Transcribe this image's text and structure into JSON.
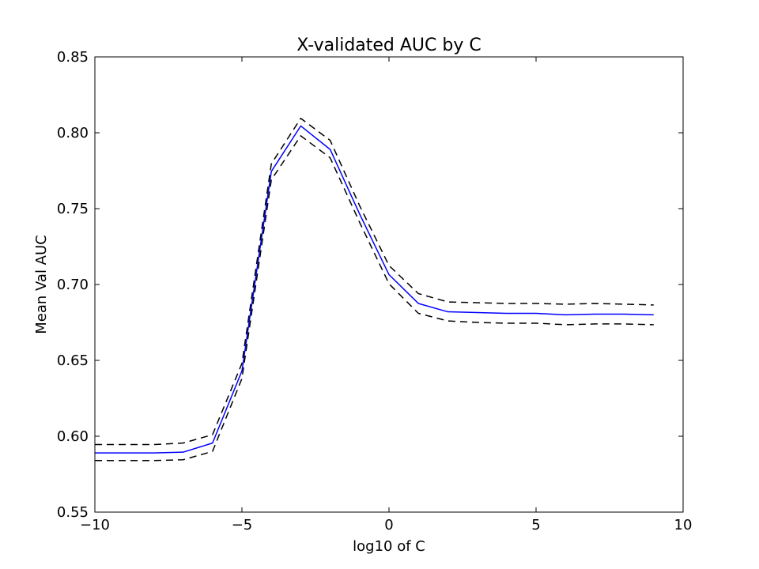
{
  "chart_data": {
    "type": "line",
    "title": "X-validated AUC by C",
    "xlabel": "log10 of C",
    "ylabel": "Mean Val AUC",
    "xlim": [
      -10,
      10
    ],
    "ylim": [
      0.55,
      0.85
    ],
    "xticks": [
      -10,
      -5,
      0,
      5,
      10
    ],
    "xtick_labels": [
      "−10",
      "−5",
      "0",
      "5",
      "10"
    ],
    "yticks": [
      0.55,
      0.6,
      0.65,
      0.7,
      0.75,
      0.8,
      0.85
    ],
    "ytick_labels": [
      "0.55",
      "0.60",
      "0.65",
      "0.70",
      "0.75",
      "0.80",
      "0.85"
    ],
    "grid": false,
    "legend": false,
    "x": [
      -10,
      -9,
      -8,
      -7,
      -6,
      -5,
      -4,
      -3,
      -2,
      -1,
      0,
      1,
      2,
      3,
      4,
      5,
      6,
      7,
      8,
      9
    ],
    "series": [
      {
        "style": "solid",
        "color": "#0000ff",
        "values": [
          0.589,
          0.589,
          0.589,
          0.5895,
          0.5955,
          0.643,
          0.7745,
          0.8045,
          0.789,
          0.7465,
          0.7065,
          0.6875,
          0.682,
          0.6815,
          0.681,
          0.681,
          0.68,
          0.6805,
          0.6805,
          0.68
        ]
      },
      {
        "style": "dashed",
        "color": "#000000",
        "values": [
          0.5945,
          0.5945,
          0.5945,
          0.5955,
          0.601,
          0.648,
          0.7795,
          0.8095,
          0.795,
          0.752,
          0.7125,
          0.694,
          0.6885,
          0.688,
          0.6875,
          0.6875,
          0.687,
          0.6875,
          0.687,
          0.6865
        ]
      },
      {
        "style": "dashed",
        "color": "#000000",
        "values": [
          0.584,
          0.584,
          0.584,
          0.5845,
          0.59,
          0.638,
          0.769,
          0.798,
          0.7835,
          0.741,
          0.7005,
          0.681,
          0.676,
          0.675,
          0.6745,
          0.6745,
          0.6735,
          0.674,
          0.674,
          0.6735
        ]
      }
    ]
  }
}
